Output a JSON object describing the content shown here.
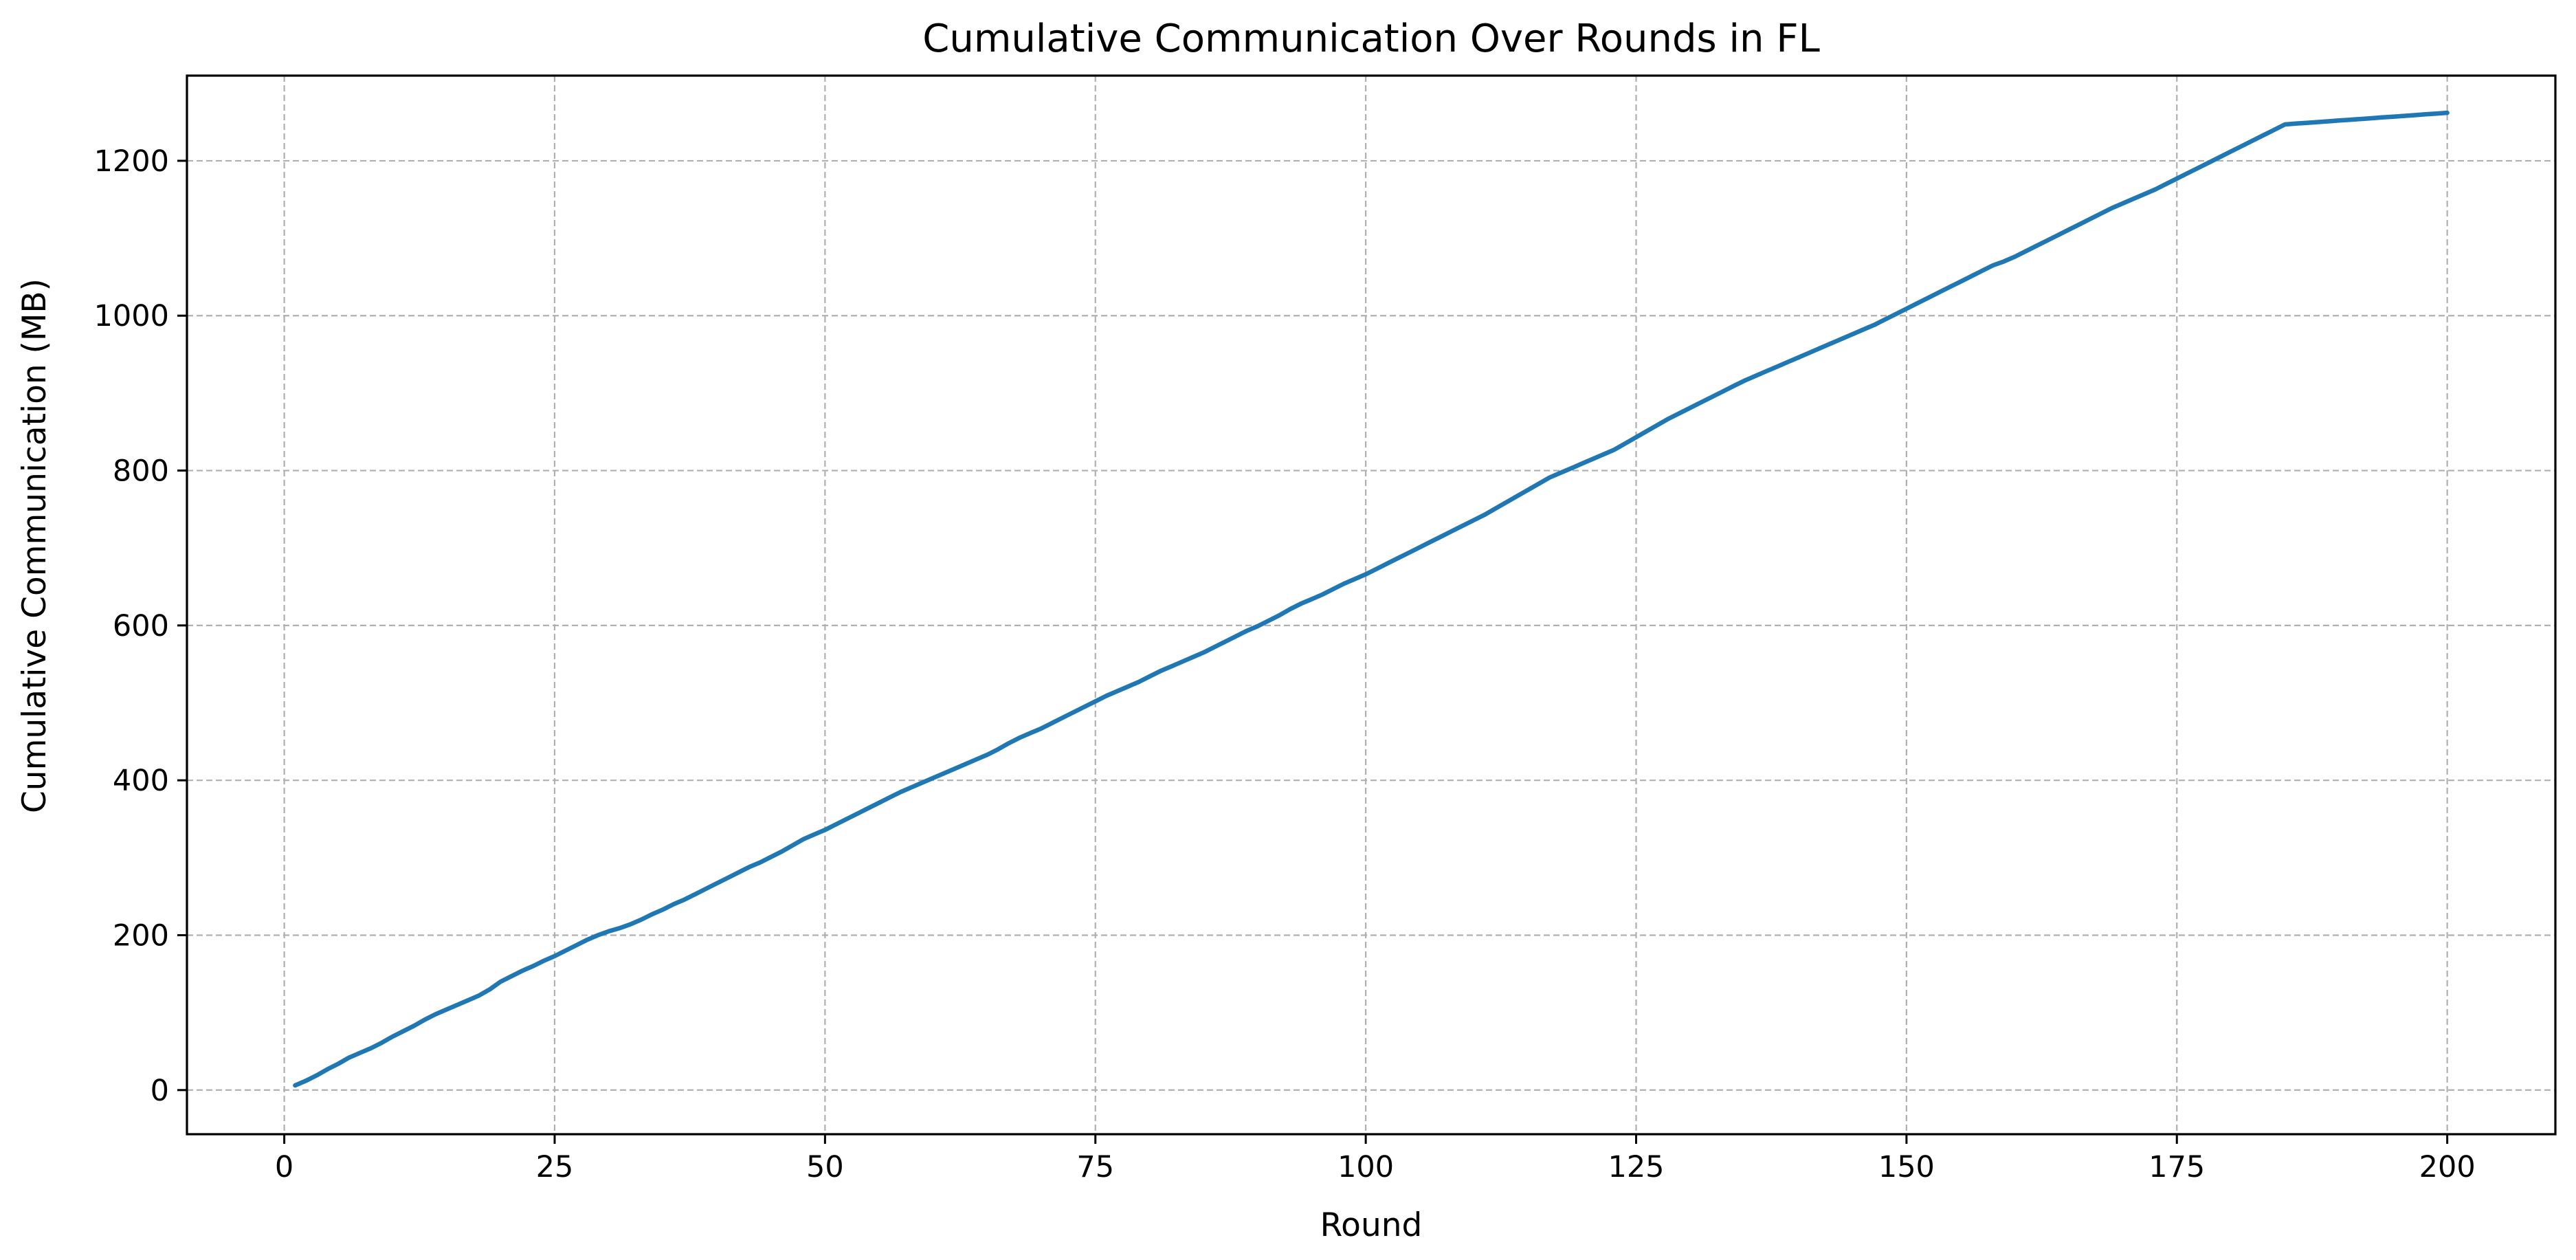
{
  "chart_data": {
    "type": "line",
    "title": "Cumulative Communication Over Rounds in FL",
    "xlabel": "Round",
    "ylabel": "Cumulative Communication (MB)",
    "xlim": [
      -9,
      210
    ],
    "ylim": [
      -57,
      1310
    ],
    "xticks": [
      0,
      25,
      50,
      75,
      100,
      125,
      150,
      175,
      200
    ],
    "yticks": [
      0,
      200,
      400,
      600,
      800,
      1000,
      1200
    ],
    "grid": true,
    "grid_style": "dashed",
    "legend": "none",
    "series": [
      {
        "color": "#1f77b4",
        "x": [
          1,
          2,
          3,
          4,
          5,
          6,
          7,
          8,
          9,
          10,
          11,
          12,
          13,
          14,
          15,
          16,
          17,
          18,
          19,
          20,
          21,
          22,
          23,
          24,
          25,
          26,
          27,
          28,
          29,
          30,
          31,
          32,
          33,
          34,
          35,
          36,
          37,
          38,
          39,
          40,
          41,
          42,
          43,
          44,
          45,
          46,
          47,
          48,
          49,
          50,
          51,
          52,
          53,
          54,
          55,
          56,
          57,
          58,
          59,
          60,
          61,
          62,
          63,
          64,
          65,
          66,
          67,
          68,
          69,
          70,
          71,
          72,
          73,
          74,
          75,
          76,
          77,
          78,
          79,
          80,
          81,
          82,
          83,
          84,
          85,
          86,
          87,
          88,
          89,
          90,
          91,
          92,
          93,
          94,
          95,
          96,
          97,
          98,
          99,
          100,
          101,
          102,
          103,
          104,
          105,
          106,
          107,
          108,
          109,
          110,
          111,
          112,
          113,
          114,
          115,
          116,
          117,
          118,
          119,
          120,
          121,
          122,
          123,
          124,
          125,
          126,
          127,
          128,
          129,
          130,
          131,
          132,
          133,
          134,
          135,
          136,
          137,
          138,
          139,
          140,
          141,
          142,
          143,
          144,
          145,
          146,
          147,
          148,
          149,
          150,
          151,
          152,
          153,
          154,
          155,
          156,
          157,
          158,
          159,
          160,
          161,
          162,
          163,
          164,
          165,
          166,
          167,
          168,
          169,
          170,
          171,
          172,
          173,
          174,
          175,
          176,
          177,
          178,
          179,
          180,
          181,
          182,
          183,
          184,
          185,
          186,
          187,
          188,
          189,
          190,
          191,
          192,
          193,
          194,
          195,
          196,
          197,
          198,
          199,
          200
        ],
        "y": [
          6,
          12,
          19,
          27,
          34,
          42,
          48,
          54,
          61,
          69,
          76,
          83,
          91,
          98,
          104,
          110,
          116,
          122,
          130,
          140,
          147,
          154,
          160,
          167,
          173,
          180,
          187,
          194,
          200,
          205,
          209,
          214,
          220,
          227,
          233,
          240,
          246,
          253,
          260,
          267,
          274,
          281,
          288,
          294,
          301,
          308,
          316,
          324,
          330,
          336,
          343,
          350,
          357,
          364,
          371,
          378,
          385,
          391,
          397,
          403,
          409,
          415,
          421,
          427,
          433,
          440,
          448,
          455,
          461,
          467,
          474,
          481,
          488,
          495,
          502,
          509,
          515,
          521,
          527,
          534,
          541,
          547,
          553,
          559,
          565,
          572,
          579,
          586,
          593,
          599,
          606,
          613,
          621,
          628,
          634,
          640,
          647,
          654,
          660,
          666,
          673,
          680,
          687,
          694,
          701,
          708,
          715,
          722,
          729,
          736,
          743,
          751,
          759,
          767,
          775,
          783,
          791,
          797,
          803,
          809,
          815,
          821,
          827,
          835,
          843,
          851,
          859,
          867,
          874,
          881,
          888,
          895,
          902,
          909,
          916,
          922,
          928,
          934,
          940,
          946,
          952,
          958,
          964,
          970,
          976,
          982,
          988,
          995,
          1002,
          1009,
          1016,
          1023,
          1030,
          1037,
          1044,
          1051,
          1058,
          1065,
          1070,
          1076,
          1083,
          1090,
          1097,
          1104,
          1111,
          1118,
          1125,
          1132,
          1139,
          1145,
          1151,
          1157,
          1163,
          1170,
          1177,
          1184,
          1191,
          1198,
          1205,
          1212,
          1219,
          1226,
          1233,
          1240,
          1247,
          1248,
          1249,
          1250,
          1251,
          1252,
          1253,
          1254,
          1255,
          1256,
          1257,
          1258,
          1259,
          1260,
          1261,
          1262
        ]
      }
    ]
  }
}
